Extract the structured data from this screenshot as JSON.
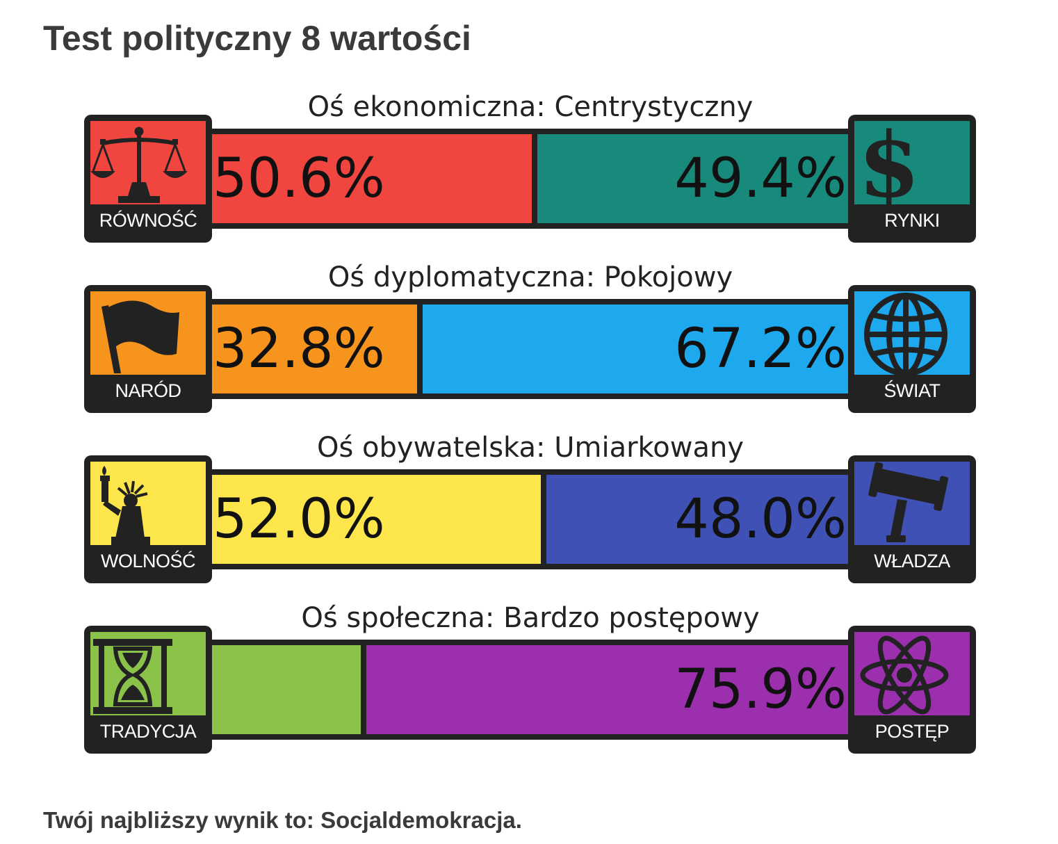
{
  "page": {
    "title": "Test polityczny 8 wartości",
    "result_text": "Twój najbliższy wynik to: Socjaldemokracja."
  },
  "axes": [
    {
      "title": "Oś ekonomiczna: Centrystyczny",
      "left": {
        "label": "RÓWNOŚĆ",
        "icon": "scales-icon",
        "color": "#f0463f",
        "value_text": "50.6%",
        "value": 50.6
      },
      "right": {
        "label": "RYNKI",
        "icon": "dollar-icon",
        "color": "#178a7c",
        "value_text": "49.4%",
        "value": 49.4
      }
    },
    {
      "title": "Oś dyplomatyczna: Pokojowy",
      "left": {
        "label": "NARÓD",
        "icon": "flag-icon",
        "color": "#f7941d",
        "value_text": "32.8%",
        "value": 32.8
      },
      "right": {
        "label": "ŚWIAT",
        "icon": "globe-icon",
        "color": "#1ea8ee",
        "value_text": "67.2%",
        "value": 67.2
      }
    },
    {
      "title": "Oś obywatelska: Umiarkowany",
      "left": {
        "label": "WOLNOŚĆ",
        "icon": "statue-of-liberty-icon",
        "color": "#fde64b",
        "value_text": "52.0%",
        "value": 52.0
      },
      "right": {
        "label": "WŁADZA",
        "icon": "gavel-icon",
        "color": "#3f51b5",
        "value_text": "48.0%",
        "value": 48.0
      }
    },
    {
      "title": "Oś społeczna: Bardzo postępowy",
      "left": {
        "label": "TRADYCJA",
        "icon": "hourglass-icon",
        "color": "#8bc34a",
        "value_text": "",
        "value": 24.1
      },
      "right": {
        "label": "POSTĘP",
        "icon": "atom-icon",
        "color": "#9b2fae",
        "value_text": "75.9%",
        "value": 75.9
      }
    }
  ]
}
